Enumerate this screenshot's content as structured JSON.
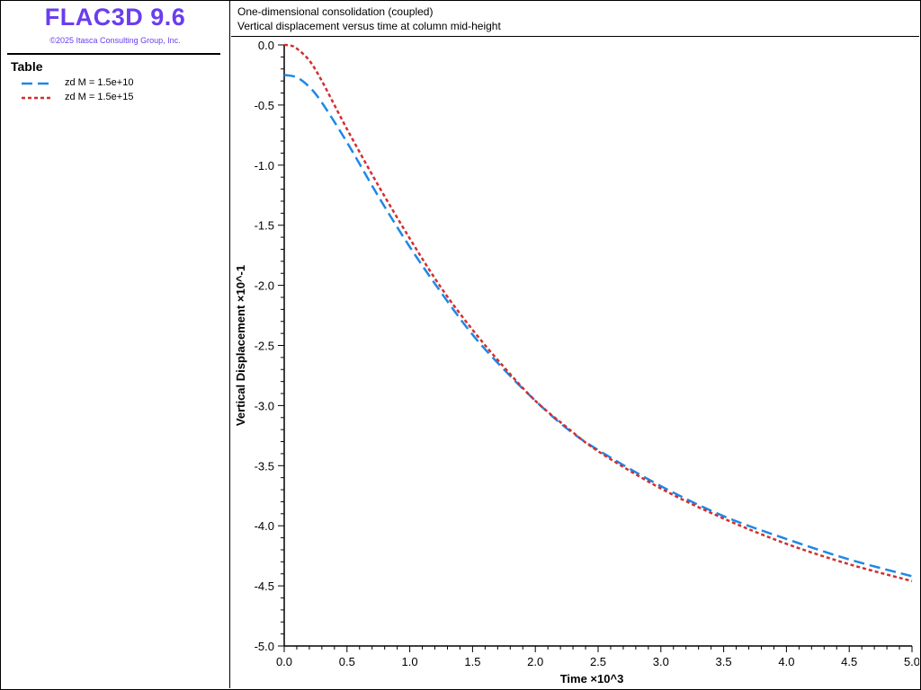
{
  "brand": {
    "title": "FLAC3D 9.6",
    "copyright": "©2025 Itasca Consulting Group, Inc."
  },
  "header": {
    "line1": "One-dimensional consolidation (coupled)",
    "line2": "Vertical displacement versus time at column mid-height"
  },
  "legend": {
    "title": "Table",
    "items": [
      {
        "label": "zd M = 1.5e+10",
        "color": "#1e88e5",
        "dash": "dashed"
      },
      {
        "label": "zd M = 1.5e+15",
        "color": "#d32f2f",
        "dash": "dotted"
      }
    ]
  },
  "chart_data": {
    "type": "line",
    "xlabel": "Time ×10^3",
    "ylabel": "Vertical Displacement ×10^-1",
    "xlim": [
      0.0,
      5.0
    ],
    "ylim": [
      -5.0,
      0.0
    ],
    "x_ticks": [
      "0.0",
      "0.5",
      "1.0",
      "1.5",
      "2.0",
      "2.5",
      "3.0",
      "3.5",
      "4.0",
      "4.5",
      "5.0"
    ],
    "y_ticks": [
      "0.0",
      "-0.5",
      "-1.0",
      "-1.5",
      "-2.0",
      "-2.5",
      "-3.0",
      "-3.5",
      "-4.0",
      "-4.5",
      "-5.0"
    ],
    "grid": false,
    "legend_position": "left-panel",
    "series": [
      {
        "name": "zd M = 1.5e+10",
        "color": "#1e88e5",
        "x": [
          0.0,
          0.1,
          0.2,
          0.3,
          0.5,
          0.75,
          1.0,
          1.25,
          1.5,
          1.75,
          2.0,
          2.25,
          2.5,
          3.0,
          3.5,
          4.0,
          4.5,
          5.0
        ],
        "y": [
          -0.25,
          -0.27,
          -0.35,
          -0.48,
          -0.81,
          -1.26,
          -1.68,
          -2.06,
          -2.41,
          -2.7,
          -2.96,
          -3.19,
          -3.37,
          -3.67,
          -3.92,
          -4.11,
          -4.28,
          -4.42
        ]
      },
      {
        "name": "zd M = 1.5e+15",
        "color": "#d32f2f",
        "x": [
          0.0,
          0.05,
          0.1,
          0.2,
          0.3,
          0.5,
          0.75,
          1.0,
          1.25,
          1.5,
          1.75,
          2.0,
          2.25,
          2.5,
          3.0,
          3.5,
          4.0,
          4.5,
          5.0
        ],
        "y": [
          0.0,
          -0.005,
          -0.03,
          -0.13,
          -0.3,
          -0.7,
          -1.17,
          -1.61,
          -2.02,
          -2.37,
          -2.68,
          -2.96,
          -3.18,
          -3.38,
          -3.69,
          -3.94,
          -4.15,
          -4.32,
          -4.46
        ]
      }
    ]
  }
}
